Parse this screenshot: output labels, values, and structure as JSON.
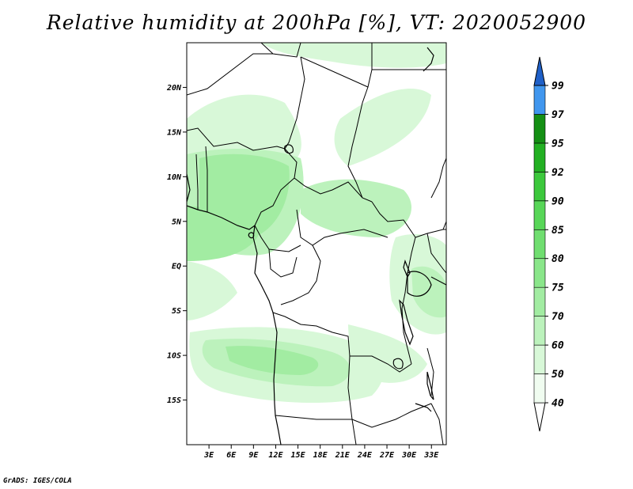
{
  "title": "Relative humidity at 200hPa [%], VT: 2020052900",
  "footer": "GrADS: IGES/COLA",
  "map": {
    "lat_labels": [
      {
        "lat": 20,
        "label": "20N"
      },
      {
        "lat": 15,
        "label": "15N"
      },
      {
        "lat": 10,
        "label": "10N"
      },
      {
        "lat": 5,
        "label": "5N"
      },
      {
        "lat": 0,
        "label": "EQ"
      },
      {
        "lat": -5,
        "label": "5S"
      },
      {
        "lat": -10,
        "label": "10S"
      },
      {
        "lat": -15,
        "label": "15S"
      }
    ],
    "lon_labels": [
      {
        "lon": 3,
        "label": "3E"
      },
      {
        "lon": 6,
        "label": "6E"
      },
      {
        "lon": 9,
        "label": "9E"
      },
      {
        "lon": 12,
        "label": "12E"
      },
      {
        "lon": 15,
        "label": "15E"
      },
      {
        "lon": 18,
        "label": "18E"
      },
      {
        "lon": 21,
        "label": "21E"
      },
      {
        "lon": 24,
        "label": "24E"
      },
      {
        "lon": 27,
        "label": "27E"
      },
      {
        "lon": 30,
        "label": "30E"
      },
      {
        "lon": 33,
        "label": "33E"
      }
    ],
    "lon_range": [
      0,
      35
    ],
    "lat_range": [
      -20,
      25
    ]
  },
  "colorbar": {
    "levels": [
      "40",
      "50",
      "60",
      "70",
      "75",
      "80",
      "85",
      "90",
      "92",
      "95",
      "97",
      "99"
    ],
    "colors": [
      "#f0fcf0",
      "#d8f8d8",
      "#bcf2bc",
      "#a2eca2",
      "#8ae68a",
      "#70de70",
      "#58d658",
      "#3cc83c",
      "#22b022",
      "#148f14",
      "#4096ee",
      "#2470dc",
      "#1f60c8"
    ]
  }
}
